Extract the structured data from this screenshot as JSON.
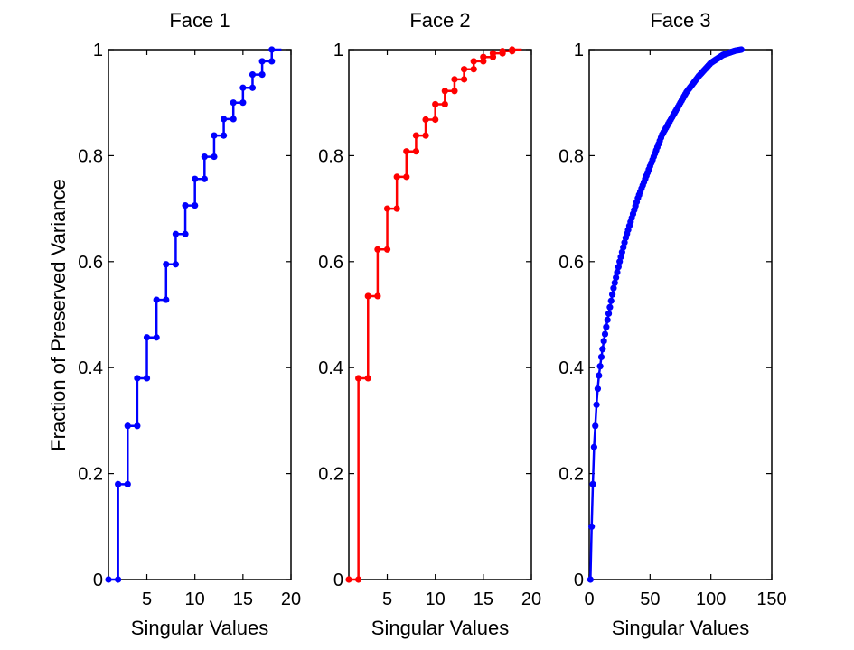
{
  "chart_data": [
    {
      "type": "line",
      "title": "Face 1",
      "xlabel": "Singular Values",
      "ylabel": "Fraction of Preserved Variance",
      "xlim": [
        1,
        20
      ],
      "ylim": [
        0,
        1
      ],
      "xticks": [
        5,
        10,
        15,
        20
      ],
      "yticks": [
        0,
        0.2,
        0.4,
        0.6,
        0.8,
        1
      ],
      "xtick_labels": [
        "5",
        "10",
        "15",
        "20"
      ],
      "ytick_labels": [
        "0",
        "0.2",
        "0.4",
        "0.6",
        "0.8",
        "1"
      ],
      "style": "step",
      "color": "#0000ff",
      "series": [
        {
          "x": [
            1,
            2,
            3,
            4,
            5,
            6,
            7,
            8,
            9,
            10,
            11,
            12,
            13,
            14,
            15,
            16,
            17,
            18
          ],
          "values": [
            0,
            0.18,
            0.29,
            0.38,
            0.457,
            0.528,
            0.595,
            0.652,
            0.706,
            0.756,
            0.798,
            0.838,
            0.869,
            0.9,
            0.928,
            0.953,
            0.978,
            1.0
          ]
        }
      ]
    },
    {
      "type": "line",
      "title": "Face 2",
      "xlabel": "Singular Values",
      "ylabel": "",
      "xlim": [
        1,
        20
      ],
      "ylim": [
        0,
        1
      ],
      "xticks": [
        5,
        10,
        15,
        20
      ],
      "yticks": [
        0,
        0.2,
        0.4,
        0.6,
        0.8,
        1
      ],
      "xtick_labels": [
        "5",
        "10",
        "15",
        "20"
      ],
      "ytick_labels": [
        "0",
        "0.2",
        "0.4",
        "0.6",
        "0.8",
        "1"
      ],
      "style": "step",
      "color": "#ff0000",
      "series": [
        {
          "x": [
            1,
            2,
            3,
            4,
            5,
            6,
            7,
            8,
            9,
            10,
            11,
            12,
            13,
            14,
            15,
            16,
            17,
            18
          ],
          "values": [
            0,
            0.38,
            0.535,
            0.623,
            0.7,
            0.76,
            0.808,
            0.838,
            0.868,
            0.897,
            0.922,
            0.944,
            0.963,
            0.978,
            0.986,
            0.993,
            0.997,
            1.0
          ]
        }
      ]
    },
    {
      "type": "line",
      "title": "Face 3",
      "xlabel": "Singular Values",
      "ylabel": "",
      "xlim": [
        0,
        150
      ],
      "ylim": [
        0,
        1
      ],
      "xticks": [
        0,
        50,
        100,
        150
      ],
      "yticks": [
        0,
        0.2,
        0.4,
        0.6,
        0.8,
        1
      ],
      "xtick_labels": [
        "0",
        "50",
        "100",
        "150"
      ],
      "ytick_labels": [
        "0",
        "0.2",
        "0.4",
        "0.6",
        "0.8",
        "1"
      ],
      "style": "line-markers",
      "color": "#0000ff",
      "series": [
        {
          "x": [
            1,
            2,
            3,
            4,
            5,
            6,
            7,
            8,
            10,
            12,
            15,
            20,
            25,
            30,
            40,
            50,
            60,
            70,
            80,
            90,
            100,
            110,
            120,
            125
          ],
          "values": [
            0,
            0.1,
            0.18,
            0.25,
            0.29,
            0.33,
            0.36,
            0.385,
            0.42,
            0.45,
            0.49,
            0.55,
            0.6,
            0.645,
            0.72,
            0.78,
            0.84,
            0.88,
            0.92,
            0.95,
            0.975,
            0.99,
            0.998,
            1.0
          ]
        }
      ]
    }
  ]
}
